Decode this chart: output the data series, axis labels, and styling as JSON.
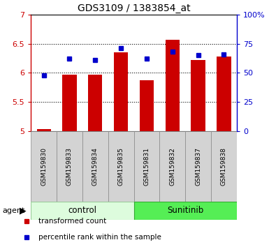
{
  "title": "GDS3109 / 1383854_at",
  "samples": [
    "GSM159830",
    "GSM159833",
    "GSM159834",
    "GSM159835",
    "GSM159831",
    "GSM159832",
    "GSM159837",
    "GSM159838"
  ],
  "bar_values": [
    5.03,
    5.97,
    5.97,
    6.35,
    5.87,
    6.57,
    6.22,
    6.28
  ],
  "percentile_values": [
    48,
    62,
    61,
    71,
    62,
    68,
    65,
    66
  ],
  "ylim_left": [
    5.0,
    7.0
  ],
  "ylim_right": [
    0,
    100
  ],
  "yticks_left": [
    5.0,
    5.5,
    6.0,
    6.5,
    7.0
  ],
  "ytick_labels_left": [
    "5",
    "5.5",
    "6",
    "6.5",
    "7"
  ],
  "yticks_right": [
    0,
    25,
    50,
    75,
    100
  ],
  "ytick_labels_right": [
    "0",
    "25",
    "50",
    "75",
    "100%"
  ],
  "bar_color": "#cc0000",
  "marker_color": "#0000cc",
  "bar_bottom": 5.0,
  "bar_width": 0.55,
  "group_control_color": "#ddfcdd",
  "group_sunitinib_color": "#55ee55",
  "group_labels": [
    "control",
    "Sunitinib"
  ],
  "group_ranges": [
    [
      0,
      3
    ],
    [
      4,
      7
    ]
  ],
  "agent_label": "agent",
  "legend_labels": [
    "transformed count",
    "percentile rank within the sample"
  ],
  "legend_colors": [
    "#cc0000",
    "#0000cc"
  ],
  "grid_dotted_lines": [
    5.5,
    6.0,
    6.5
  ],
  "marker_size": 5
}
